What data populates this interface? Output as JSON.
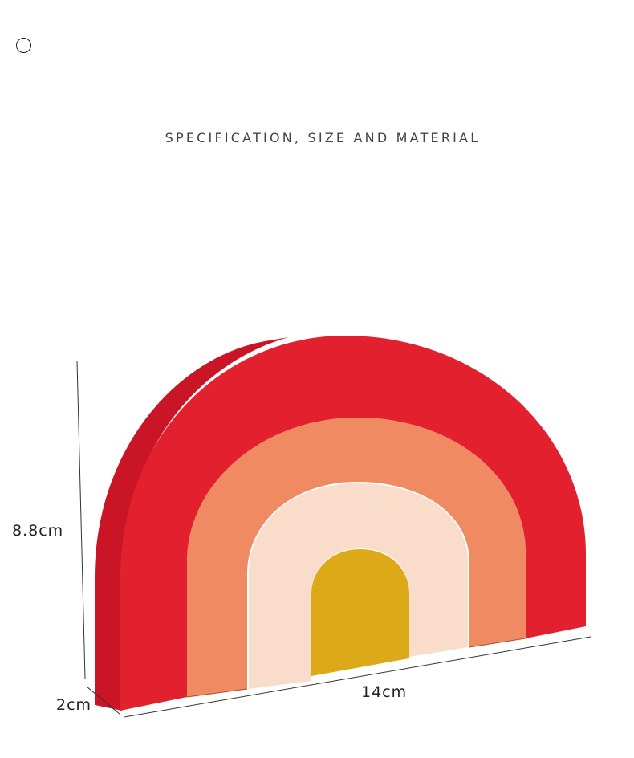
{
  "header": {
    "title": "SPECIFICATION, SIZE AND MATERIAL"
  },
  "dimensions": {
    "height": "8.8cm",
    "depth": "2cm",
    "width": "14cm"
  },
  "colors": {
    "red": "#e3202e",
    "red_side": "#c91526",
    "orange": "#f08a62",
    "cream": "#fadccb",
    "yellow": "#dcaa18",
    "line": "#333333"
  }
}
